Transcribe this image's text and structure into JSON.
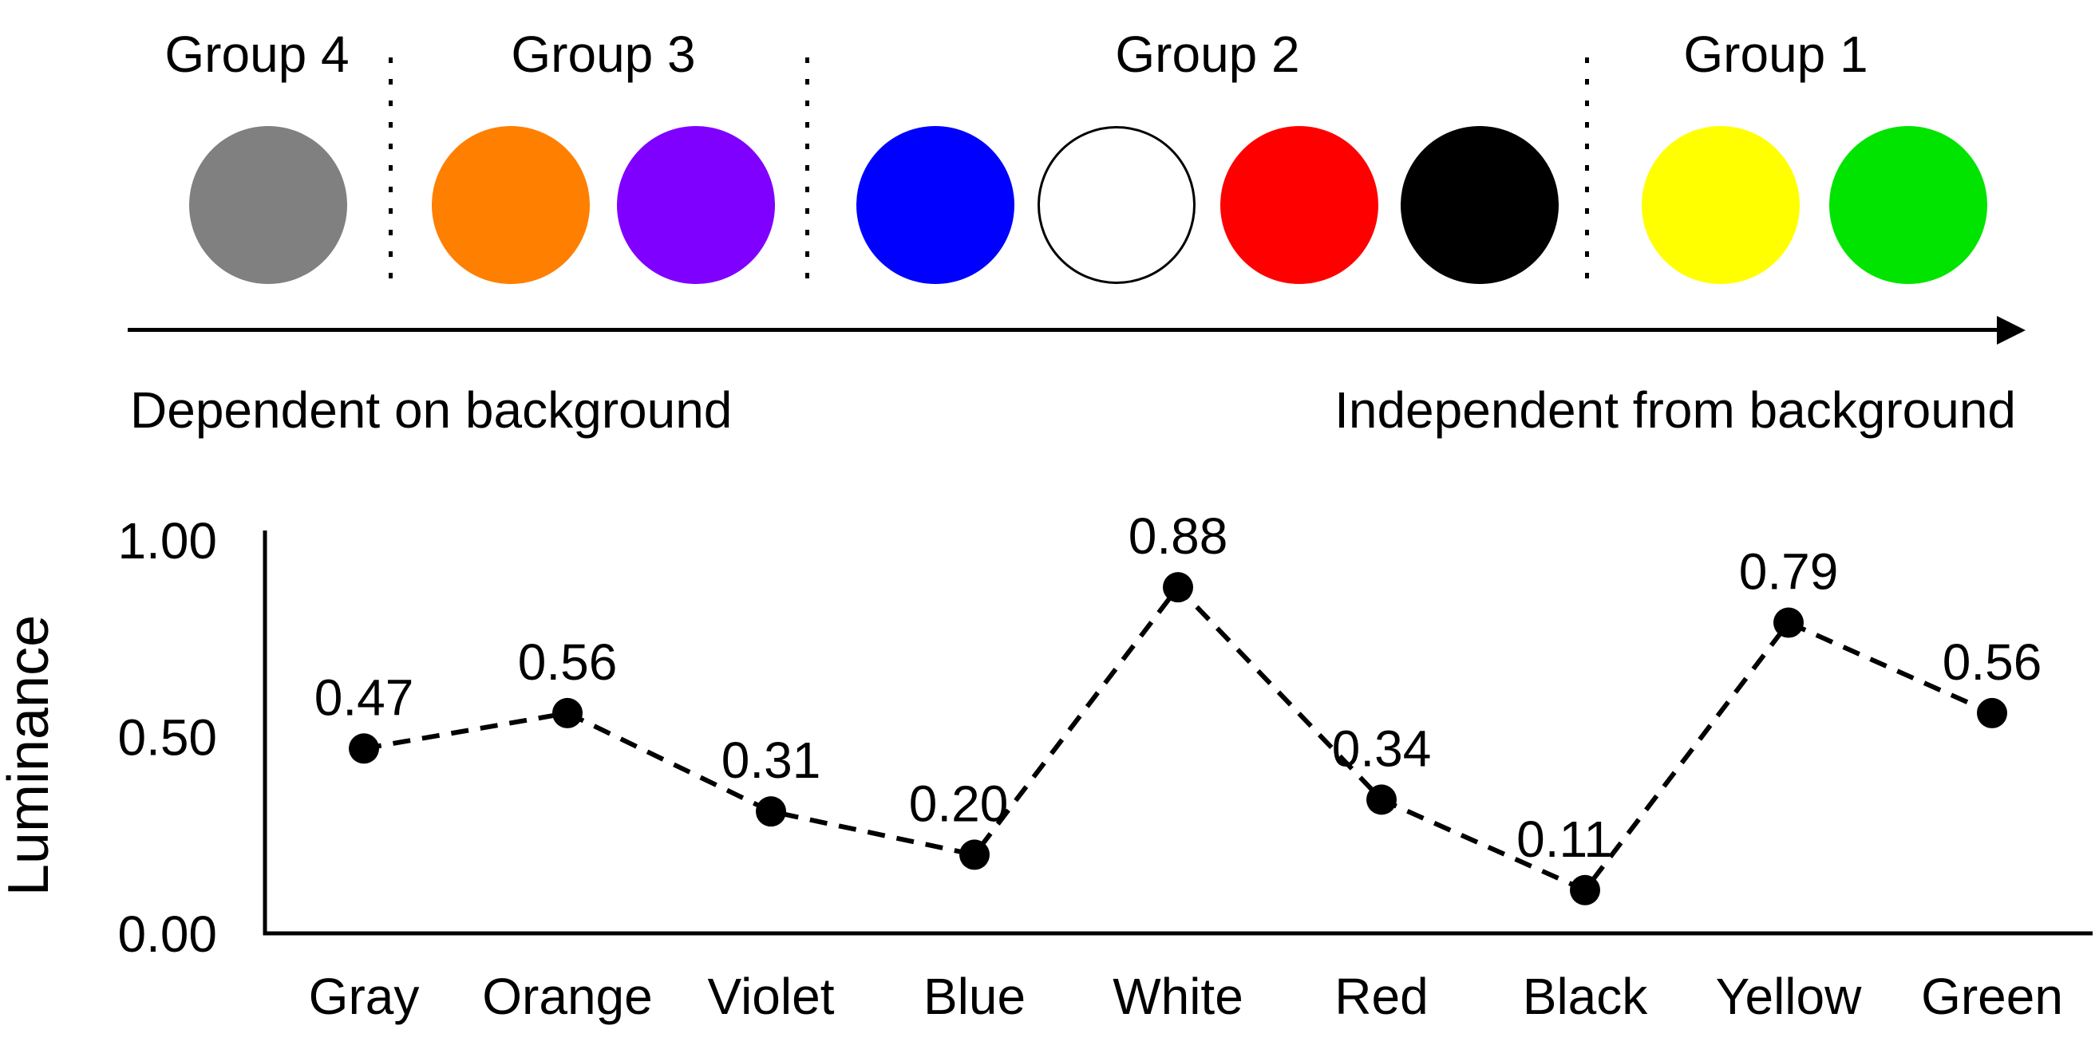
{
  "figure": {
    "background_color": "#ffffff",
    "text_color": "#000000"
  },
  "top": {
    "groups": [
      {
        "label": "Group 4",
        "circles": [
          {
            "name": "gray",
            "color": "#808080"
          }
        ]
      },
      {
        "label": "Group 3",
        "circles": [
          {
            "name": "orange",
            "color": "#ff7f00"
          },
          {
            "name": "violet",
            "color": "#7f00ff"
          }
        ]
      },
      {
        "label": "Group 2",
        "circles": [
          {
            "name": "blue",
            "color": "#0000ff"
          },
          {
            "name": "white",
            "color": "#ffffff",
            "outline": "#000000"
          },
          {
            "name": "red",
            "color": "#ff0000"
          },
          {
            "name": "black",
            "color": "#000000"
          }
        ]
      },
      {
        "label": "Group 1",
        "circles": [
          {
            "name": "yellow",
            "color": "#ffff00"
          },
          {
            "name": "green",
            "color": "#00e400"
          }
        ]
      }
    ],
    "axis_arrow": {
      "left_label": "Dependent on background",
      "right_label": "Independent from background"
    }
  },
  "chart_data": {
    "type": "line",
    "categories": [
      "Gray",
      "Orange",
      "Violet",
      "Blue",
      "White",
      "Red",
      "Black",
      "Yellow",
      "Green"
    ],
    "values": [
      0.47,
      0.56,
      0.31,
      0.2,
      0.88,
      0.34,
      0.11,
      0.79,
      0.56
    ],
    "value_labels": [
      "0.47",
      "0.56",
      "0.31",
      "0.20",
      "0.88",
      "0.34",
      "0.11",
      "0.79",
      "0.56"
    ],
    "title": "",
    "xlabel": "",
    "ylabel": "Luminance",
    "ylim": [
      0,
      1
    ],
    "ytick_labels": [
      "0.00",
      "0.50",
      "1.00"
    ],
    "ytick_values": [
      0,
      0.5,
      1
    ],
    "grid": false,
    "line_style": "dashed",
    "line_color": "#000000",
    "marker": "filled-circle",
    "marker_color": "#000000"
  }
}
